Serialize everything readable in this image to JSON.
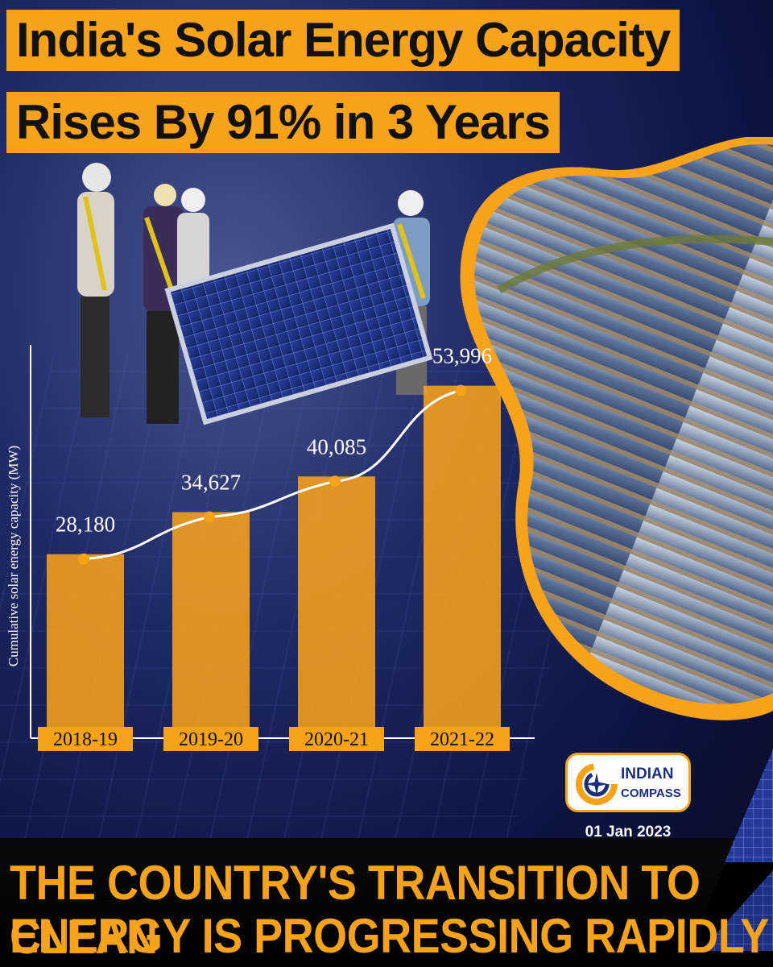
{
  "header": {
    "title_line1": "India's Solar Energy Capacity",
    "title_line2": "Rises By 91% in 3 Years"
  },
  "chart_data": {
    "type": "bar",
    "categories": [
      "2018-19",
      "2019-20",
      "2020-21",
      "2021-22"
    ],
    "values": [
      28180,
      34627,
      40085,
      53996
    ],
    "value_labels": [
      "28,180",
      "34,627",
      "40,085",
      "53,996"
    ],
    "ylabel": "Cumulative solar energy capacity (MW)",
    "xlabel": "",
    "ylim": [
      0,
      60000
    ],
    "trend_line": true,
    "grid": false,
    "bar_color": "#f7a21b",
    "line_color": "#ffffff"
  },
  "branding": {
    "logo_line1": "INDIAN",
    "logo_line2": "COMPASS",
    "logo_icon": "compass-icon",
    "date": "01 Jan 2023"
  },
  "footer": {
    "tagline_line1": "THE COUNTRY'S TRANSITION TO CLEAN",
    "tagline_line2": "ENERGY IS PROGRESSING RAPIDLY"
  },
  "colors": {
    "accent": "#f7a21b",
    "background": "#0c1440",
    "text_dark": "#111111"
  }
}
